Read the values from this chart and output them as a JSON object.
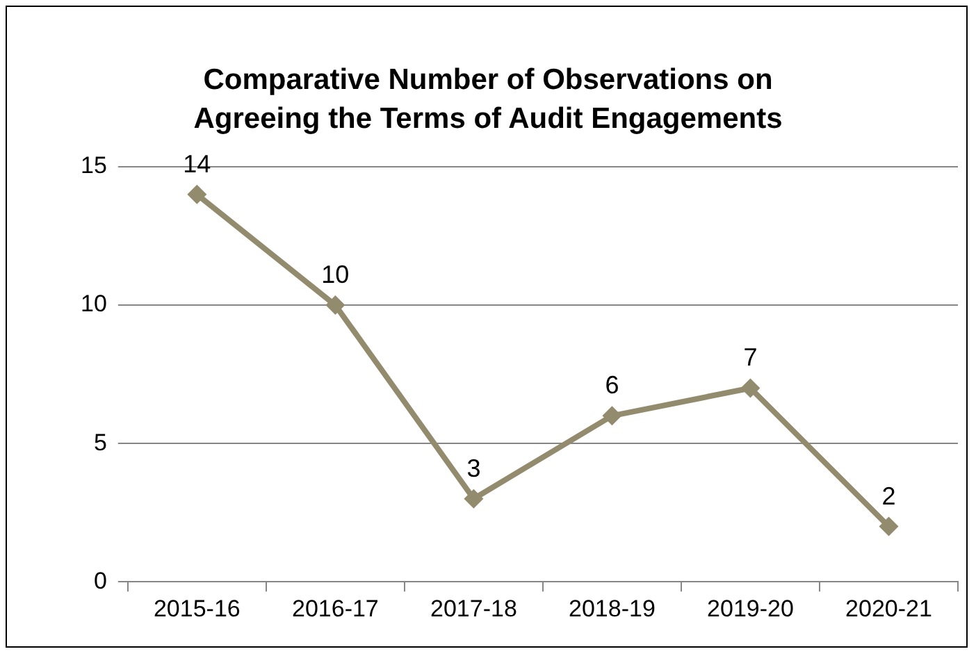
{
  "chart_data": {
    "type": "line",
    "title": "Comparative Number of Observations on Agreeing the Terms of Audit Engagements",
    "categories": [
      "2015-16",
      "2016-17",
      "2017-18",
      "2018-19",
      "2019-20",
      "2020-21"
    ],
    "values": [
      14,
      10,
      3,
      6,
      7,
      2
    ],
    "color": "#938b6e",
    "ylim": [
      0,
      15
    ],
    "yticks": [
      0,
      5,
      10,
      15
    ],
    "grid": "y",
    "marker": "diamond",
    "data_labels": true,
    "legend": false
  }
}
